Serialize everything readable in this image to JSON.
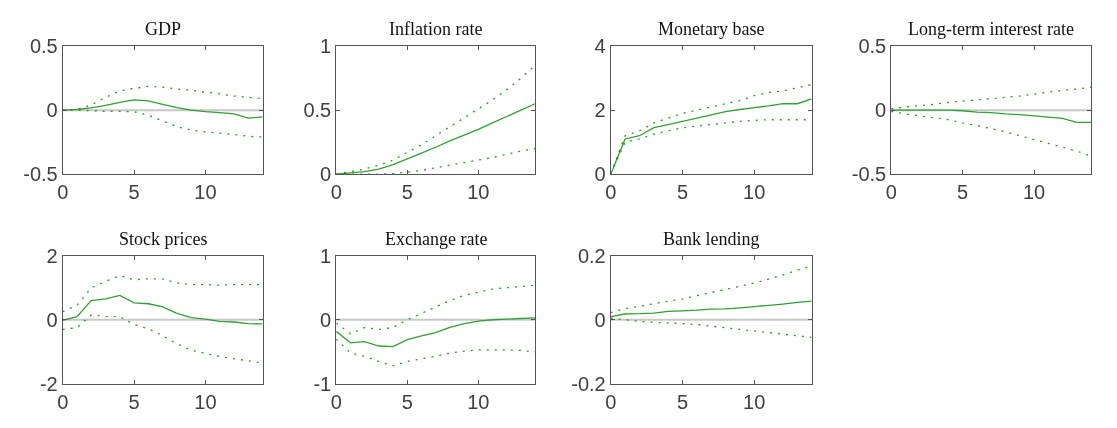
{
  "chart_data": [
    {
      "type": "line",
      "title": "GDP",
      "x": [
        0,
        1,
        2,
        3,
        4,
        5,
        6,
        7,
        8,
        9,
        10,
        11,
        12,
        13,
        14
      ],
      "xlim": [
        0,
        14
      ],
      "xticks": [
        0,
        5,
        10
      ],
      "ylim": [
        -0.5,
        0.5
      ],
      "yticks": [
        -0.5,
        0,
        0.5
      ],
      "ref_lines": [
        {
          "axis": "y",
          "value": 0,
          "color": "#c8c8c8"
        }
      ],
      "series": [
        {
          "color": "#33a033",
          "line_style": "solid",
          "values": [
            0,
            0.005,
            0.017,
            0.037,
            0.06,
            0.08,
            0.072,
            0.045,
            0.02,
            0,
            -0.012,
            -0.02,
            -0.03,
            -0.062,
            -0.052
          ]
        },
        {
          "color": "#2a962a",
          "line_style": "dotted",
          "values": [
            0,
            0.005,
            0.04,
            0.1,
            0.15,
            0.17,
            0.185,
            0.18,
            0.165,
            0.155,
            0.14,
            0.127,
            0.11,
            0.1,
            0.09
          ]
        },
        {
          "color": "#2a962a",
          "line_style": "dotted",
          "values": [
            0,
            0,
            -0.005,
            -0.01,
            -0.01,
            -0.012,
            -0.04,
            -0.085,
            -0.13,
            -0.155,
            -0.17,
            -0.18,
            -0.19,
            -0.205,
            -0.21
          ]
        }
      ]
    },
    {
      "type": "line",
      "title": "Inflation rate",
      "x": [
        0,
        1,
        2,
        3,
        4,
        5,
        6,
        7,
        8,
        9,
        10,
        11,
        12,
        13,
        14
      ],
      "xlim": [
        0,
        14
      ],
      "xticks": [
        0,
        5,
        10
      ],
      "ylim": [
        0,
        1
      ],
      "yticks": [
        0,
        0.5,
        1
      ],
      "series": [
        {
          "color": "#33a033",
          "line_style": "solid",
          "values": [
            0,
            0.01,
            0.02,
            0.04,
            0.075,
            0.12,
            0.165,
            0.21,
            0.26,
            0.305,
            0.35,
            0.4,
            0.45,
            0.5,
            0.55
          ]
        },
        {
          "color": "#2a962a",
          "line_style": "dotted",
          "values": [
            0,
            0.02,
            0.04,
            0.07,
            0.11,
            0.17,
            0.23,
            0.3,
            0.37,
            0.44,
            0.51,
            0.58,
            0.66,
            0.75,
            0.85
          ]
        },
        {
          "color": "#2a962a",
          "line_style": "dotted",
          "values": [
            0,
            0,
            0,
            0,
            0.005,
            0.015,
            0.03,
            0.05,
            0.07,
            0.09,
            0.11,
            0.13,
            0.155,
            0.18,
            0.2
          ]
        }
      ]
    },
    {
      "type": "line",
      "title": "Monetary base",
      "x": [
        0,
        1,
        2,
        3,
        4,
        5,
        6,
        7,
        8,
        9,
        10,
        11,
        12,
        13,
        14
      ],
      "xlim": [
        0,
        14
      ],
      "xticks": [
        0,
        5,
        10
      ],
      "ylim": [
        0,
        4
      ],
      "yticks": [
        0,
        2,
        4
      ],
      "series": [
        {
          "color": "#33a033",
          "line_style": "solid",
          "values": [
            0,
            1.1,
            1.2,
            1.45,
            1.55,
            1.65,
            1.75,
            1.85,
            1.95,
            2.02,
            2.08,
            2.13,
            2.2,
            2.2,
            2.35
          ]
        },
        {
          "color": "#2a962a",
          "line_style": "dotted",
          "values": [
            0,
            1.2,
            1.35,
            1.6,
            1.75,
            1.9,
            2.0,
            2.1,
            2.2,
            2.3,
            2.45,
            2.55,
            2.6,
            2.7,
            2.8
          ]
        },
        {
          "color": "#2a962a",
          "line_style": "dotted",
          "values": [
            0,
            1.0,
            1.1,
            1.25,
            1.35,
            1.45,
            1.5,
            1.55,
            1.6,
            1.65,
            1.68,
            1.7,
            1.7,
            1.7,
            1.7
          ]
        }
      ]
    },
    {
      "type": "line",
      "title": "Long-term interest rate",
      "x": [
        0,
        1,
        2,
        3,
        4,
        5,
        6,
        7,
        8,
        9,
        10,
        11,
        12,
        13,
        14
      ],
      "xlim": [
        0,
        14
      ],
      "xticks": [
        0,
        5,
        10
      ],
      "ylim": [
        -0.5,
        0.5
      ],
      "yticks": [
        -0.5,
        0,
        0.5
      ],
      "ref_lines": [
        {
          "axis": "y",
          "value": 0,
          "color": "#c8c8c8"
        }
      ],
      "series": [
        {
          "color": "#33a033",
          "line_style": "solid",
          "values": [
            0,
            0,
            0,
            0,
            0,
            -0.005,
            -0.015,
            -0.02,
            -0.03,
            -0.035,
            -0.045,
            -0.055,
            -0.065,
            -0.095,
            -0.095
          ]
        },
        {
          "color": "#2a962a",
          "line_style": "dotted",
          "values": [
            0.01,
            0.025,
            0.035,
            0.045,
            0.06,
            0.07,
            0.08,
            0.09,
            0.1,
            0.11,
            0.125,
            0.14,
            0.155,
            0.165,
            0.18
          ]
        },
        {
          "color": "#2a962a",
          "line_style": "dotted",
          "values": [
            -0.01,
            -0.03,
            -0.045,
            -0.06,
            -0.075,
            -0.1,
            -0.12,
            -0.145,
            -0.17,
            -0.2,
            -0.23,
            -0.26,
            -0.29,
            -0.32,
            -0.36
          ]
        }
      ]
    },
    {
      "type": "line",
      "title": "Stock prices",
      "x": [
        0,
        1,
        2,
        3,
        4,
        5,
        6,
        7,
        8,
        9,
        10,
        11,
        12,
        13,
        14
      ],
      "xlim": [
        0,
        14
      ],
      "xticks": [
        0,
        5,
        10
      ],
      "ylim": [
        -2,
        2
      ],
      "yticks": [
        -2,
        0,
        2
      ],
      "ref_lines": [
        {
          "axis": "y",
          "value": 0,
          "color": "#c8c8c8"
        }
      ],
      "series": [
        {
          "color": "#33a033",
          "line_style": "solid",
          "values": [
            -0.02,
            0.1,
            0.6,
            0.65,
            0.76,
            0.53,
            0.5,
            0.4,
            0.2,
            0.07,
            0.02,
            -0.05,
            -0.07,
            -0.12,
            -0.13
          ]
        },
        {
          "color": "#2a962a",
          "line_style": "dotted",
          "values": [
            0.25,
            0.45,
            1.0,
            1.2,
            1.38,
            1.25,
            1.28,
            1.28,
            1.15,
            1.1,
            1.1,
            1.08,
            1.1,
            1.1,
            1.1
          ]
        },
        {
          "color": "#2a962a",
          "line_style": "dotted",
          "values": [
            -0.3,
            -0.25,
            0.15,
            0.1,
            0.1,
            -0.15,
            -0.28,
            -0.5,
            -0.75,
            -0.95,
            -1.05,
            -1.15,
            -1.22,
            -1.28,
            -1.35
          ]
        }
      ]
    },
    {
      "type": "line",
      "title": "Exchange rate",
      "x": [
        0,
        1,
        2,
        3,
        4,
        5,
        6,
        7,
        8,
        9,
        10,
        11,
        12,
        13,
        14
      ],
      "xlim": [
        0,
        14
      ],
      "xticks": [
        0,
        5,
        10
      ],
      "ylim": [
        -1,
        1
      ],
      "yticks": [
        -1,
        0,
        1
      ],
      "ref_lines": [
        {
          "axis": "y",
          "value": 0,
          "color": "#c8c8c8"
        }
      ],
      "series": [
        {
          "color": "#33a033",
          "line_style": "solid",
          "values": [
            -0.18,
            -0.36,
            -0.34,
            -0.41,
            -0.42,
            -0.31,
            -0.25,
            -0.2,
            -0.12,
            -0.06,
            -0.02,
            0,
            0.01,
            0.02,
            0.03
          ]
        },
        {
          "color": "#2a962a",
          "line_style": "dotted",
          "values": [
            -0.05,
            -0.22,
            -0.12,
            -0.15,
            -0.12,
            0,
            0.1,
            0.2,
            0.3,
            0.38,
            0.43,
            0.48,
            0.5,
            0.52,
            0.54
          ]
        },
        {
          "color": "#2a962a",
          "line_style": "dotted",
          "values": [
            -0.3,
            -0.52,
            -0.57,
            -0.65,
            -0.72,
            -0.65,
            -0.61,
            -0.57,
            -0.52,
            -0.49,
            -0.47,
            -0.47,
            -0.47,
            -0.48,
            -0.5
          ]
        }
      ]
    },
    {
      "type": "line",
      "title": "Bank lending",
      "x": [
        0,
        1,
        2,
        3,
        4,
        5,
        6,
        7,
        8,
        9,
        10,
        11,
        12,
        13,
        14
      ],
      "xlim": [
        0,
        14
      ],
      "xticks": [
        0,
        5,
        10
      ],
      "ylim": [
        -0.2,
        0.2
      ],
      "yticks": [
        -0.2,
        0,
        0.2
      ],
      "ref_lines": [
        {
          "axis": "y",
          "value": 0,
          "color": "#c8c8c8"
        }
      ],
      "series": [
        {
          "color": "#33a033",
          "line_style": "solid",
          "values": [
            0.01,
            0.018,
            0.019,
            0.021,
            0.026,
            0.028,
            0.03,
            0.033,
            0.034,
            0.037,
            0.041,
            0.045,
            0.049,
            0.054,
            0.058
          ]
        },
        {
          "color": "#2a962a",
          "line_style": "dotted",
          "values": [
            0.022,
            0.035,
            0.042,
            0.05,
            0.058,
            0.065,
            0.075,
            0.085,
            0.095,
            0.105,
            0.115,
            0.127,
            0.14,
            0.155,
            0.168
          ]
        },
        {
          "color": "#2a962a",
          "line_style": "dotted",
          "values": [
            0.005,
            0,
            -0.005,
            -0.008,
            -0.01,
            -0.012,
            -0.015,
            -0.02,
            -0.025,
            -0.03,
            -0.035,
            -0.04,
            -0.045,
            -0.05,
            -0.055
          ]
        }
      ]
    }
  ]
}
